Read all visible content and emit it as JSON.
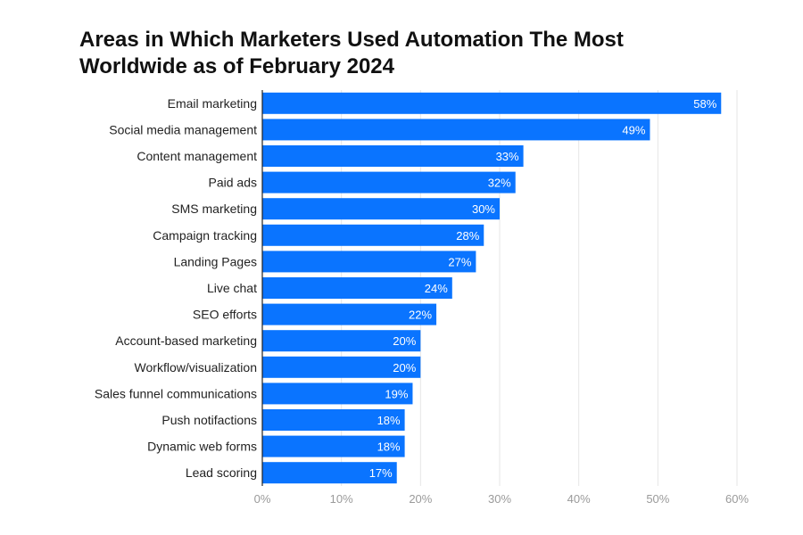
{
  "chart_data": {
    "type": "bar",
    "orientation": "horizontal",
    "title_lines": [
      "Areas in Which Marketers Used Automation The Most",
      "Worldwide as of February 2024"
    ],
    "categories": [
      "Email marketing",
      "Social media management",
      "Content management",
      "Paid ads",
      "SMS marketing",
      "Campaign tracking",
      "Landing Pages",
      "Live chat",
      "SEO efforts",
      "Account-based marketing",
      "Workflow/visualization",
      "Sales funnel communications",
      "Push notifactions",
      "Dynamic web forms",
      "Lead scoring"
    ],
    "values": [
      58,
      49,
      33,
      32,
      30,
      28,
      27,
      24,
      22,
      20,
      20,
      19,
      18,
      18,
      17
    ],
    "value_labels": [
      "58%",
      "49%",
      "33%",
      "32%",
      "30%",
      "28%",
      "27%",
      "24%",
      "22%",
      "20%",
      "20%",
      "19%",
      "18%",
      "18%",
      "17%"
    ],
    "xticks": [
      0,
      10,
      20,
      30,
      40,
      50,
      60
    ],
    "xtick_labels": [
      "0%",
      "10%",
      "20%",
      "30%",
      "40%",
      "50%",
      "60%"
    ],
    "xlim": [
      0,
      60
    ],
    "xlabel": "",
    "ylabel": "",
    "grid": "vertical",
    "legend": "none",
    "bar_color": "#0a74ff",
    "grid_color": "#e6e6e6",
    "axis_color": "#222222"
  }
}
